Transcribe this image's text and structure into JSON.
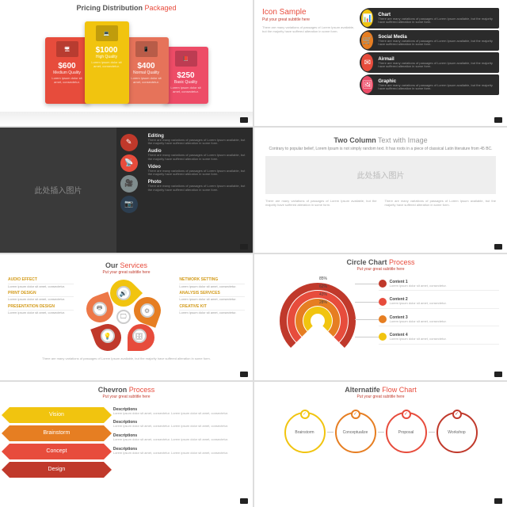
{
  "lorem_short": "There are many variations of passages of Lorem Ipsum available, but the majority have suffered alteration in some form.",
  "lorem_tiny": "Lorem ipsum dolor sit amet, consectetur.",
  "slide1": {
    "title_pre": "Pricing Distribution",
    "title_accent": " Packaged",
    "cards": [
      {
        "price": "$600",
        "label": "Medium Quality",
        "color": "#e74c3c",
        "icon": "🖥"
      },
      {
        "price": "$1000",
        "label": "High Quality",
        "color": "#f1c40f",
        "icon": "💻"
      },
      {
        "price": "$400",
        "label": "Normal Quality",
        "color": "#e6735a",
        "icon": "📱"
      },
      {
        "price": "$250",
        "label": "Basic Quality",
        "color": "#ed4c67",
        "icon": "📕"
      }
    ]
  },
  "slide2": {
    "title_pre": "Icon",
    "title_accent": " Sample",
    "sub": "Put your great subtitle here",
    "rows": [
      {
        "h": "Chart",
        "color": "#f1c40f",
        "icon": "📊"
      },
      {
        "h": "Social Media",
        "color": "#e67e22",
        "icon": "🛒"
      },
      {
        "h": "Airmail",
        "color": "#e74c3c",
        "icon": "✉"
      },
      {
        "h": "Graphic",
        "color": "#ed4c67",
        "icon": "🖼"
      }
    ]
  },
  "slide3": {
    "placeholder": "此处插入图片",
    "rows": [
      {
        "h": "Editing",
        "color": "#c0392b",
        "icon": "✎"
      },
      {
        "h": "Audio",
        "color": "#e74c3c",
        "icon": "📡"
      },
      {
        "h": "Video",
        "color": "#7f8c8d",
        "icon": "🎥"
      },
      {
        "h": "Photo",
        "color": "#2c3e50",
        "icon": "📷"
      }
    ]
  },
  "slide4": {
    "title_pre": "Two Column",
    "title_dim": " Text with Image",
    "sub": "Contrary to popular belief, Lorem Ipsum is not simply random text. It has roots in a piece of classical Latin literature from 45 BC.",
    "placeholder": "此处插入图片"
  },
  "slide5": {
    "title_pre": "Our",
    "title_accent": " Services",
    "sub": "Put your great subtitle here",
    "left": [
      {
        "h": "AUDIO EFFECT"
      },
      {
        "h": "PRINT DESIGN"
      },
      {
        "h": "PRESENTATION DESIGN"
      }
    ],
    "right": [
      {
        "h": "NETWORK SETTING"
      },
      {
        "h": "ANALYSIS SERVICES"
      },
      {
        "h": "CREATIVE KIT"
      }
    ],
    "petal_colors": [
      "#f1c40f",
      "#e67e22",
      "#e74c3c",
      "#c0392b",
      "#ed7848"
    ]
  },
  "slide6": {
    "title_pre": "Circle Chart",
    "title_accent": " Process",
    "sub": "Put your great subtitle here",
    "arcs": [
      {
        "pct": "85%",
        "color": "#c0392b",
        "r": 48
      },
      {
        "pct": "62%",
        "color": "#e74c3c",
        "r": 38
      },
      {
        "pct": "43%",
        "color": "#e67e22",
        "r": 28
      },
      {
        "pct": "28%",
        "color": "#f1c40f",
        "r": 18
      }
    ],
    "items": [
      {
        "h": "Content 1",
        "color": "#c0392b"
      },
      {
        "h": "Content 2",
        "color": "#e74c3c"
      },
      {
        "h": "Content 3",
        "color": "#e67e22"
      },
      {
        "h": "Content 4",
        "color": "#f1c40f"
      }
    ]
  },
  "slide7": {
    "title_pre": "Chevron",
    "title_accent": " Process",
    "sub": "Put your great subtitle here",
    "chev": [
      {
        "label": "Vision",
        "color": "#f1c40f"
      },
      {
        "label": "Brainstorm",
        "color": "#e67e22"
      },
      {
        "label": "Concept",
        "color": "#e74c3c"
      },
      {
        "label": "Design",
        "color": "#c0392b"
      }
    ],
    "desc_h": "Descriptions"
  },
  "slide8": {
    "title_pre": "Alternatife",
    "title_accent": " Flow Chart",
    "sub": "Put your great subtitle here",
    "rings": [
      {
        "label": "Brainstorm",
        "color": "#f1c40f"
      },
      {
        "label": "Conceptualize",
        "color": "#e67e22"
      },
      {
        "label": "Proposal",
        "color": "#e74c3c"
      },
      {
        "label": "Workshop",
        "color": "#c0392b"
      }
    ]
  }
}
